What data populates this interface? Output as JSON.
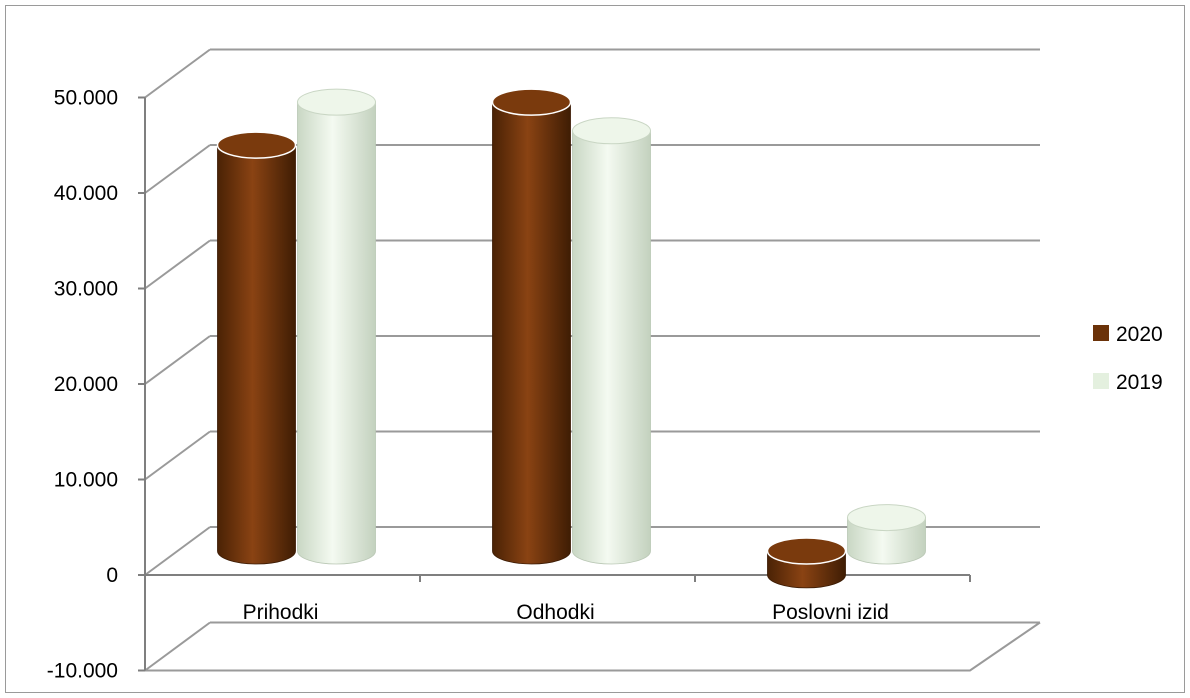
{
  "chart_data": {
    "type": "bar",
    "style": "3d-cylinder",
    "title": "",
    "xlabel": "",
    "ylabel": "",
    "categories": [
      "Prihodki",
      "Odhodki",
      "Poslovni izid"
    ],
    "series": [
      {
        "name": "2020",
        "color": "#6b3209",
        "values": [
          42500,
          47000,
          -2500
        ]
      },
      {
        "name": "2019",
        "color": "#e4f0df",
        "values": [
          47000,
          44000,
          3500
        ]
      }
    ],
    "ylim": [
      -10000,
      50000
    ],
    "y_ticks": [
      50000,
      40000,
      30000,
      20000,
      10000,
      0,
      -10000
    ],
    "y_tick_labels": [
      "50.000",
      "40.000",
      "30.000",
      "20.000",
      "10.000",
      "0",
      "-10.000"
    ],
    "grid": true,
    "legend_position": "right",
    "colors": {
      "grid": "#9a9a9a",
      "frame": "#9a9a9a",
      "axis": "#7f7f7f"
    }
  }
}
